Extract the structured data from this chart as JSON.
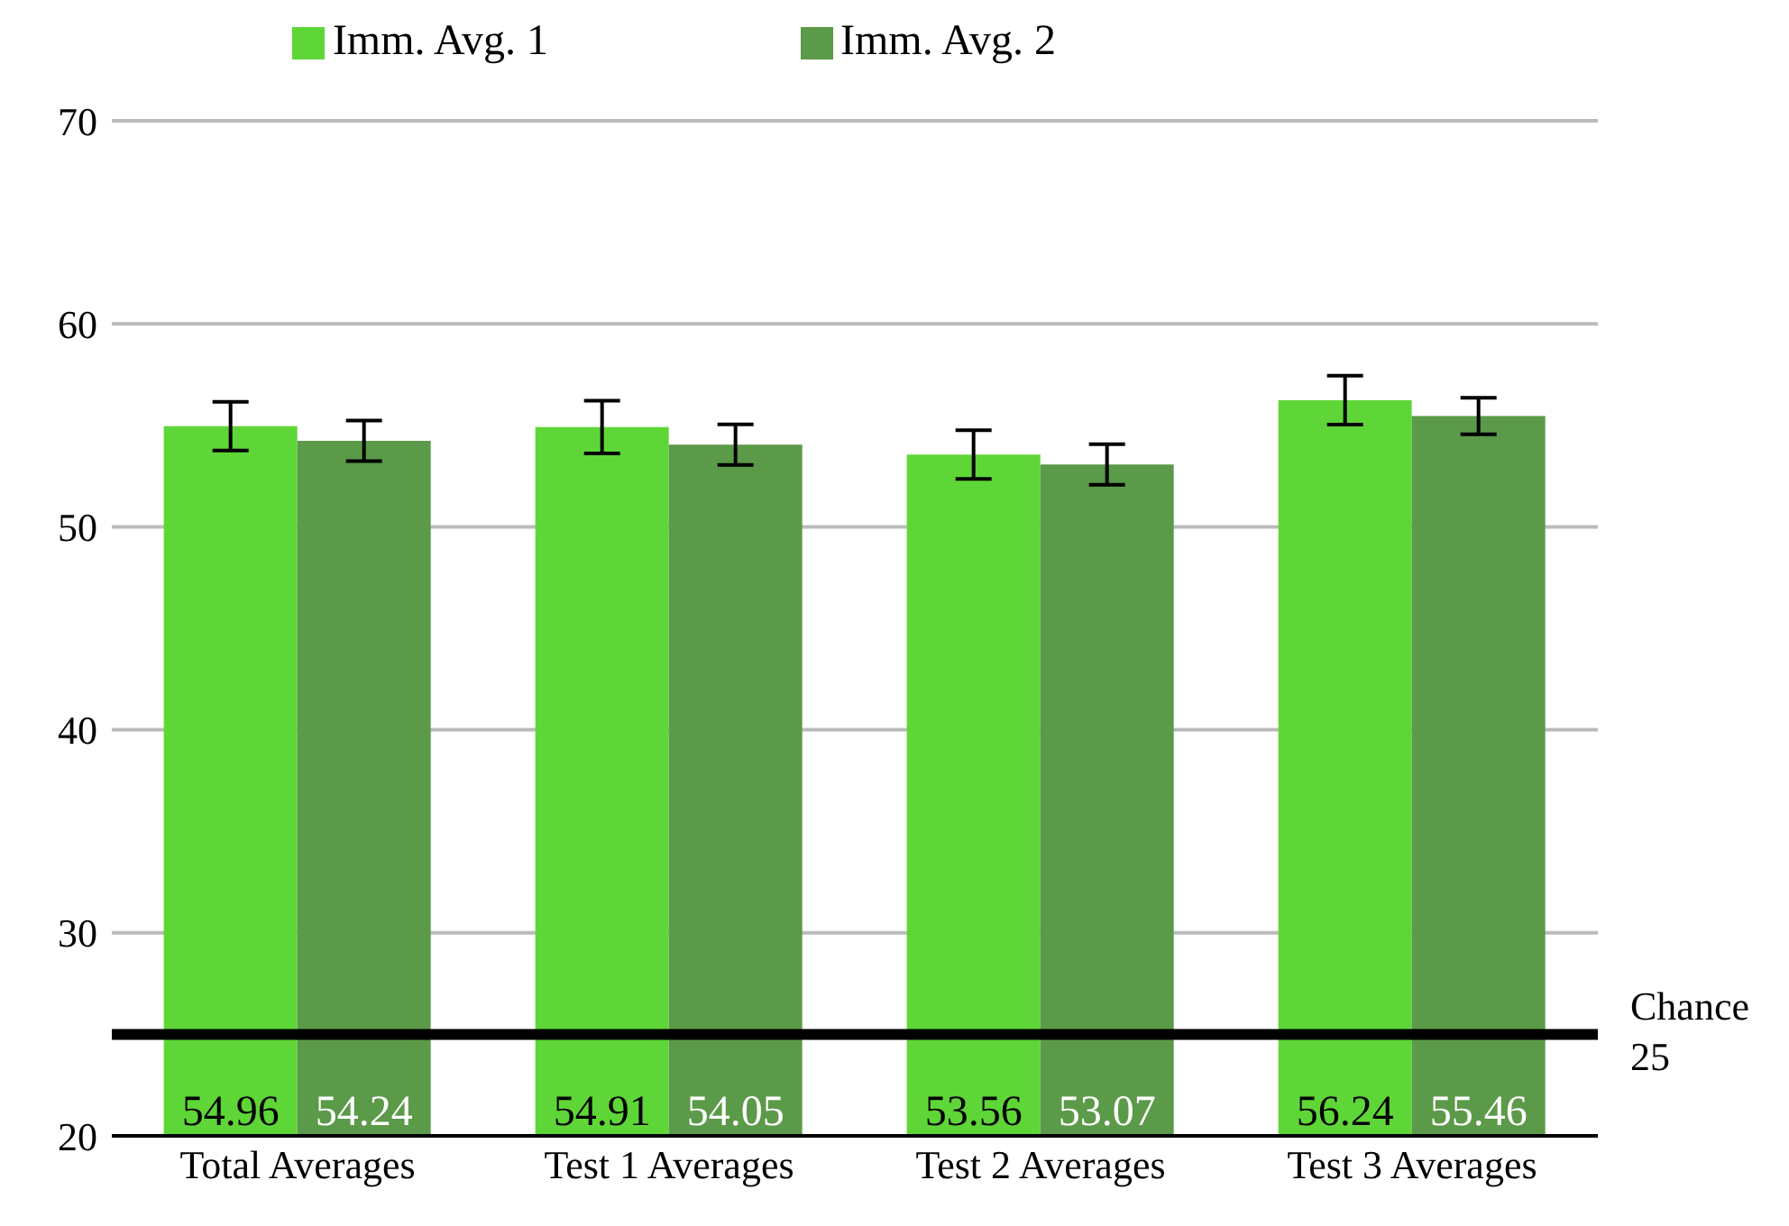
{
  "chart_data": {
    "type": "bar",
    "categories": [
      "Total Averages",
      "Test 1 Averages",
      "Test 2 Averages",
      "Test 3 Averages"
    ],
    "series": [
      {
        "name": "Imm. Avg. 1",
        "color": "#5fd637",
        "values": [
          54.96,
          54.91,
          53.56,
          56.24
        ],
        "errors": [
          1.2,
          1.3,
          1.2,
          1.2
        ]
      },
      {
        "name": "Imm. Avg. 2",
        "color": "#5b9a48",
        "values": [
          54.24,
          54.05,
          53.07,
          55.46
        ],
        "errors": [
          1.0,
          1.0,
          1.0,
          0.9
        ]
      }
    ],
    "ylim": [
      20,
      70
    ],
    "yticks": [
      20,
      30,
      40,
      50,
      60,
      70
    ],
    "grid": "y",
    "legend": "top",
    "data_labels": true,
    "ref_lines": [
      {
        "axis": "y",
        "value": 25,
        "label": "Chance 25",
        "color": "#000000"
      }
    ]
  }
}
